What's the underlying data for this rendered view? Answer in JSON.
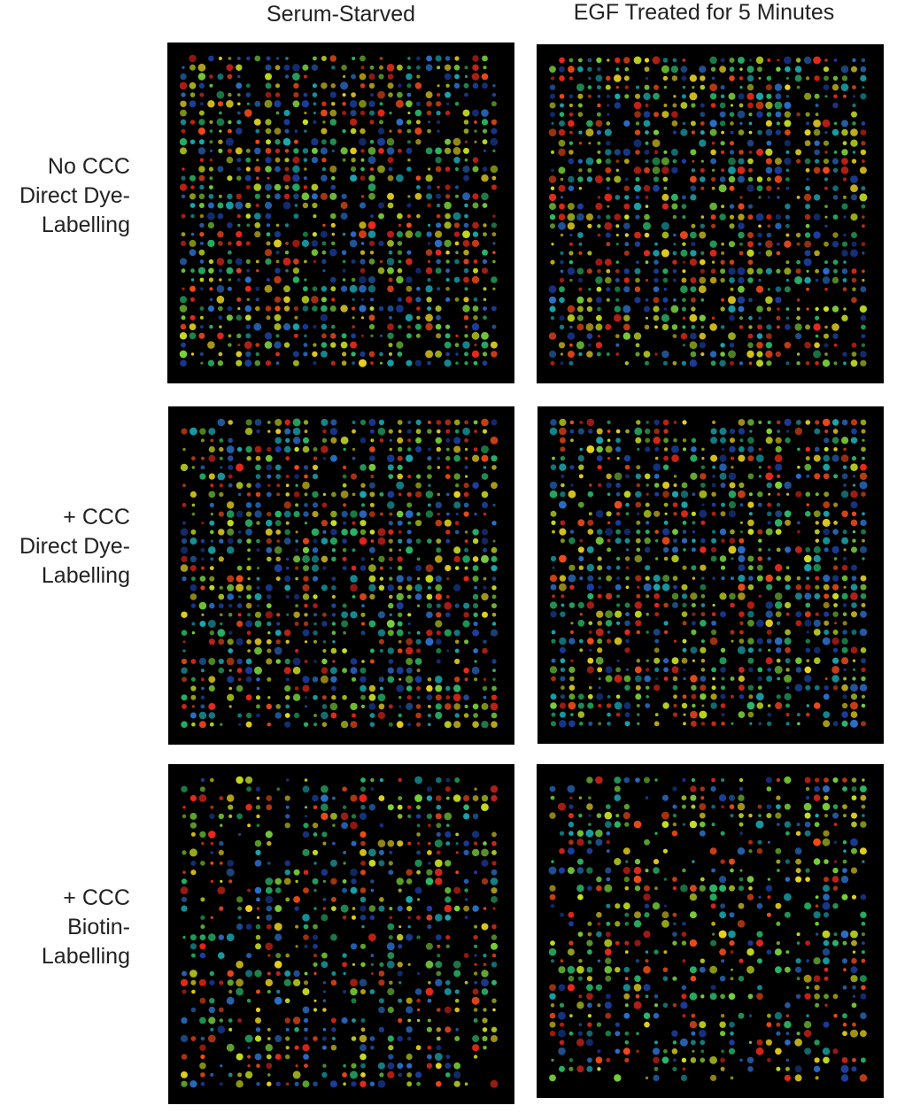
{
  "header": {
    "columns": [
      "Serum-Starved",
      "EGF Treated for 5 Minutes"
    ]
  },
  "rows": [
    {
      "label_lines": [
        "No CCC",
        "Direct Dye-",
        "Labelling"
      ]
    },
    {
      "label_lines": [
        "+ CCC",
        "Direct Dye-",
        "Labelling"
      ]
    },
    {
      "label_lines": [
        "+ CCC",
        "Biotin-",
        "Labelling"
      ]
    }
  ]
}
